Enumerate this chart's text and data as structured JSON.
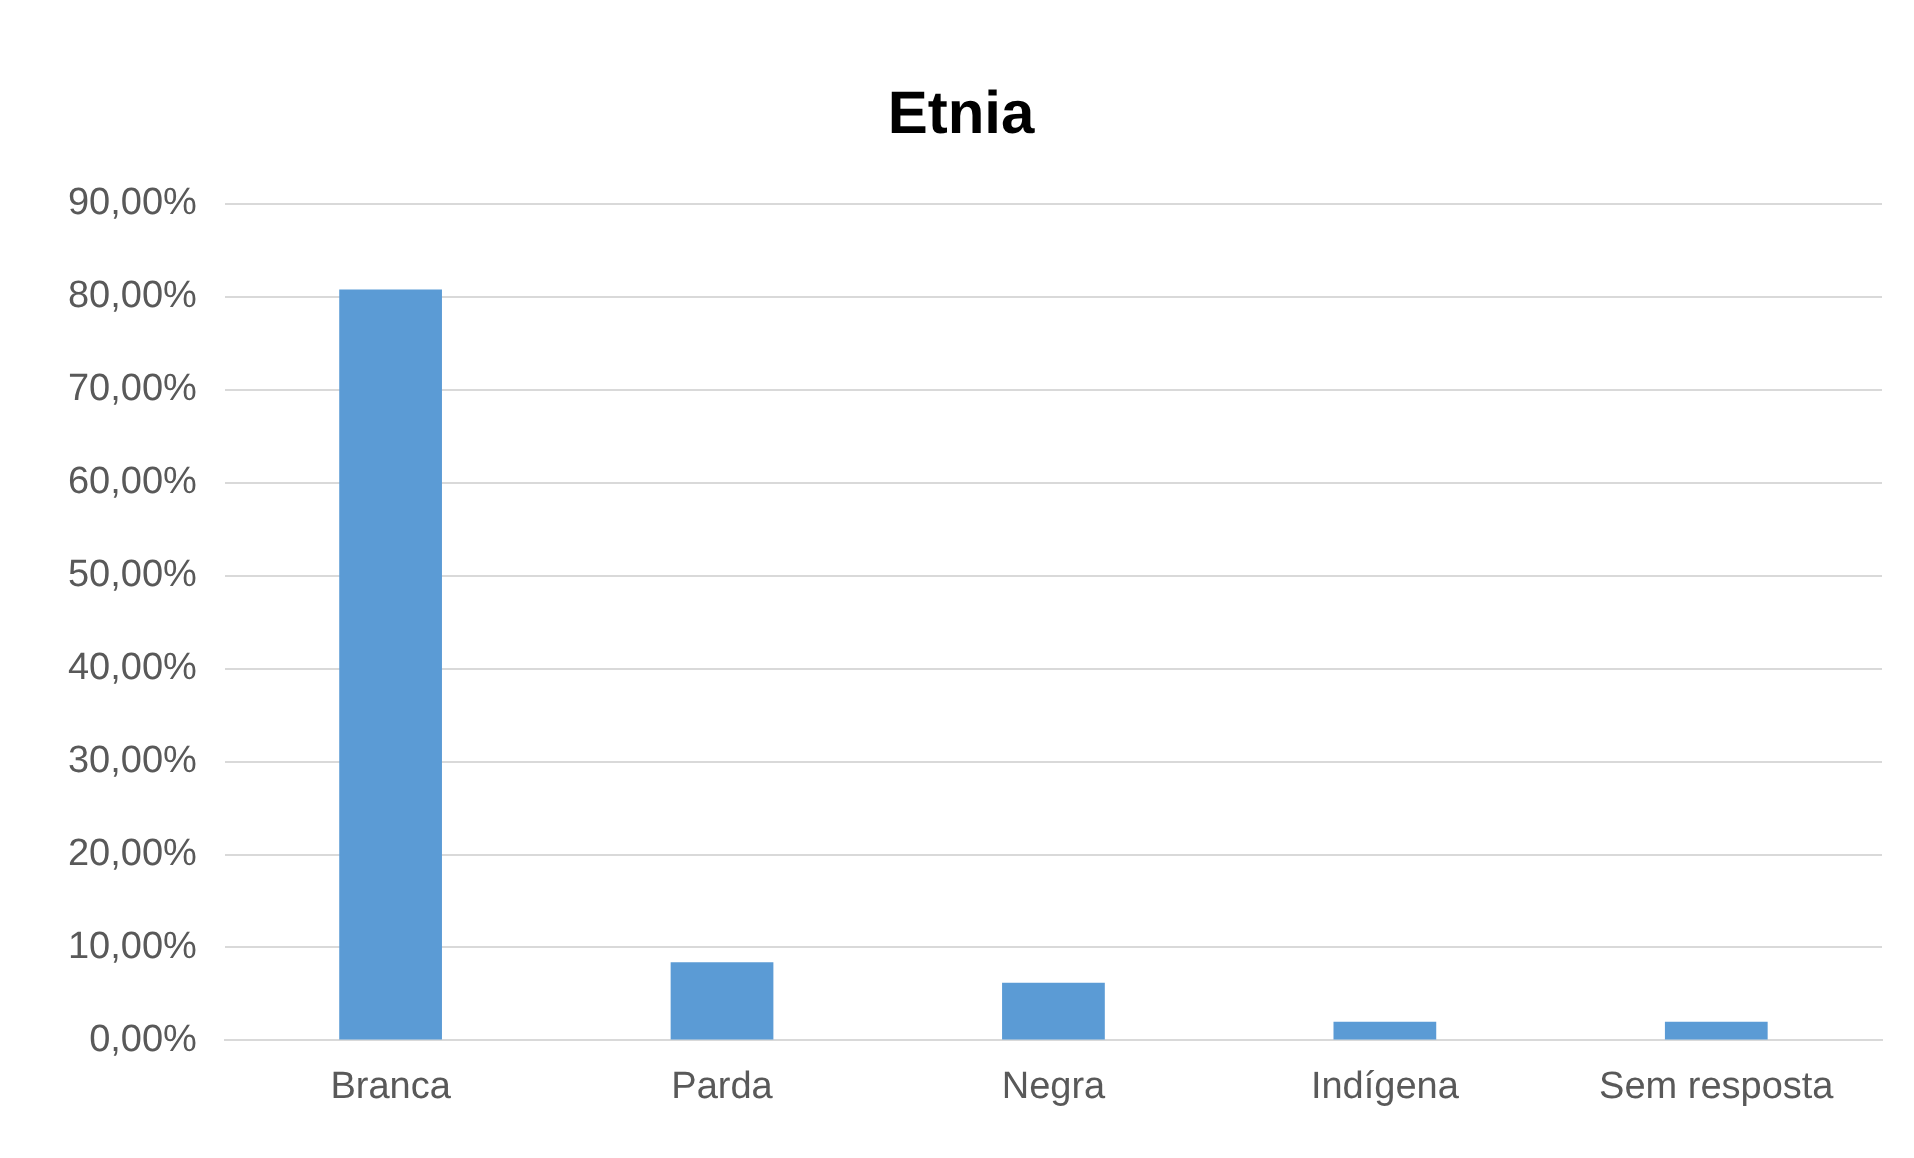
{
  "chart_data": {
    "type": "bar",
    "title": "Etnia",
    "categories": [
      "Branca",
      "Parda",
      "Negra",
      "Indígena",
      "Sem resposta"
    ],
    "values": [
      80.8,
      8.4,
      6.2,
      2.0,
      2.0
    ],
    "color": "#5b9bd5",
    "ylim": [
      0,
      90
    ],
    "yticks": [
      {
        "value": 0,
        "label": "0,00%"
      },
      {
        "value": 10,
        "label": "10,00%"
      },
      {
        "value": 20,
        "label": "20,00%"
      },
      {
        "value": 30,
        "label": "30,00%"
      },
      {
        "value": 40,
        "label": "40,00%"
      },
      {
        "value": 50,
        "label": "50,00%"
      },
      {
        "value": 60,
        "label": "60,00%"
      },
      {
        "value": 70,
        "label": "70,00%"
      },
      {
        "value": 80,
        "label": "80,00%"
      },
      {
        "value": 90,
        "label": "90,00%"
      }
    ],
    "grid": "y"
  }
}
